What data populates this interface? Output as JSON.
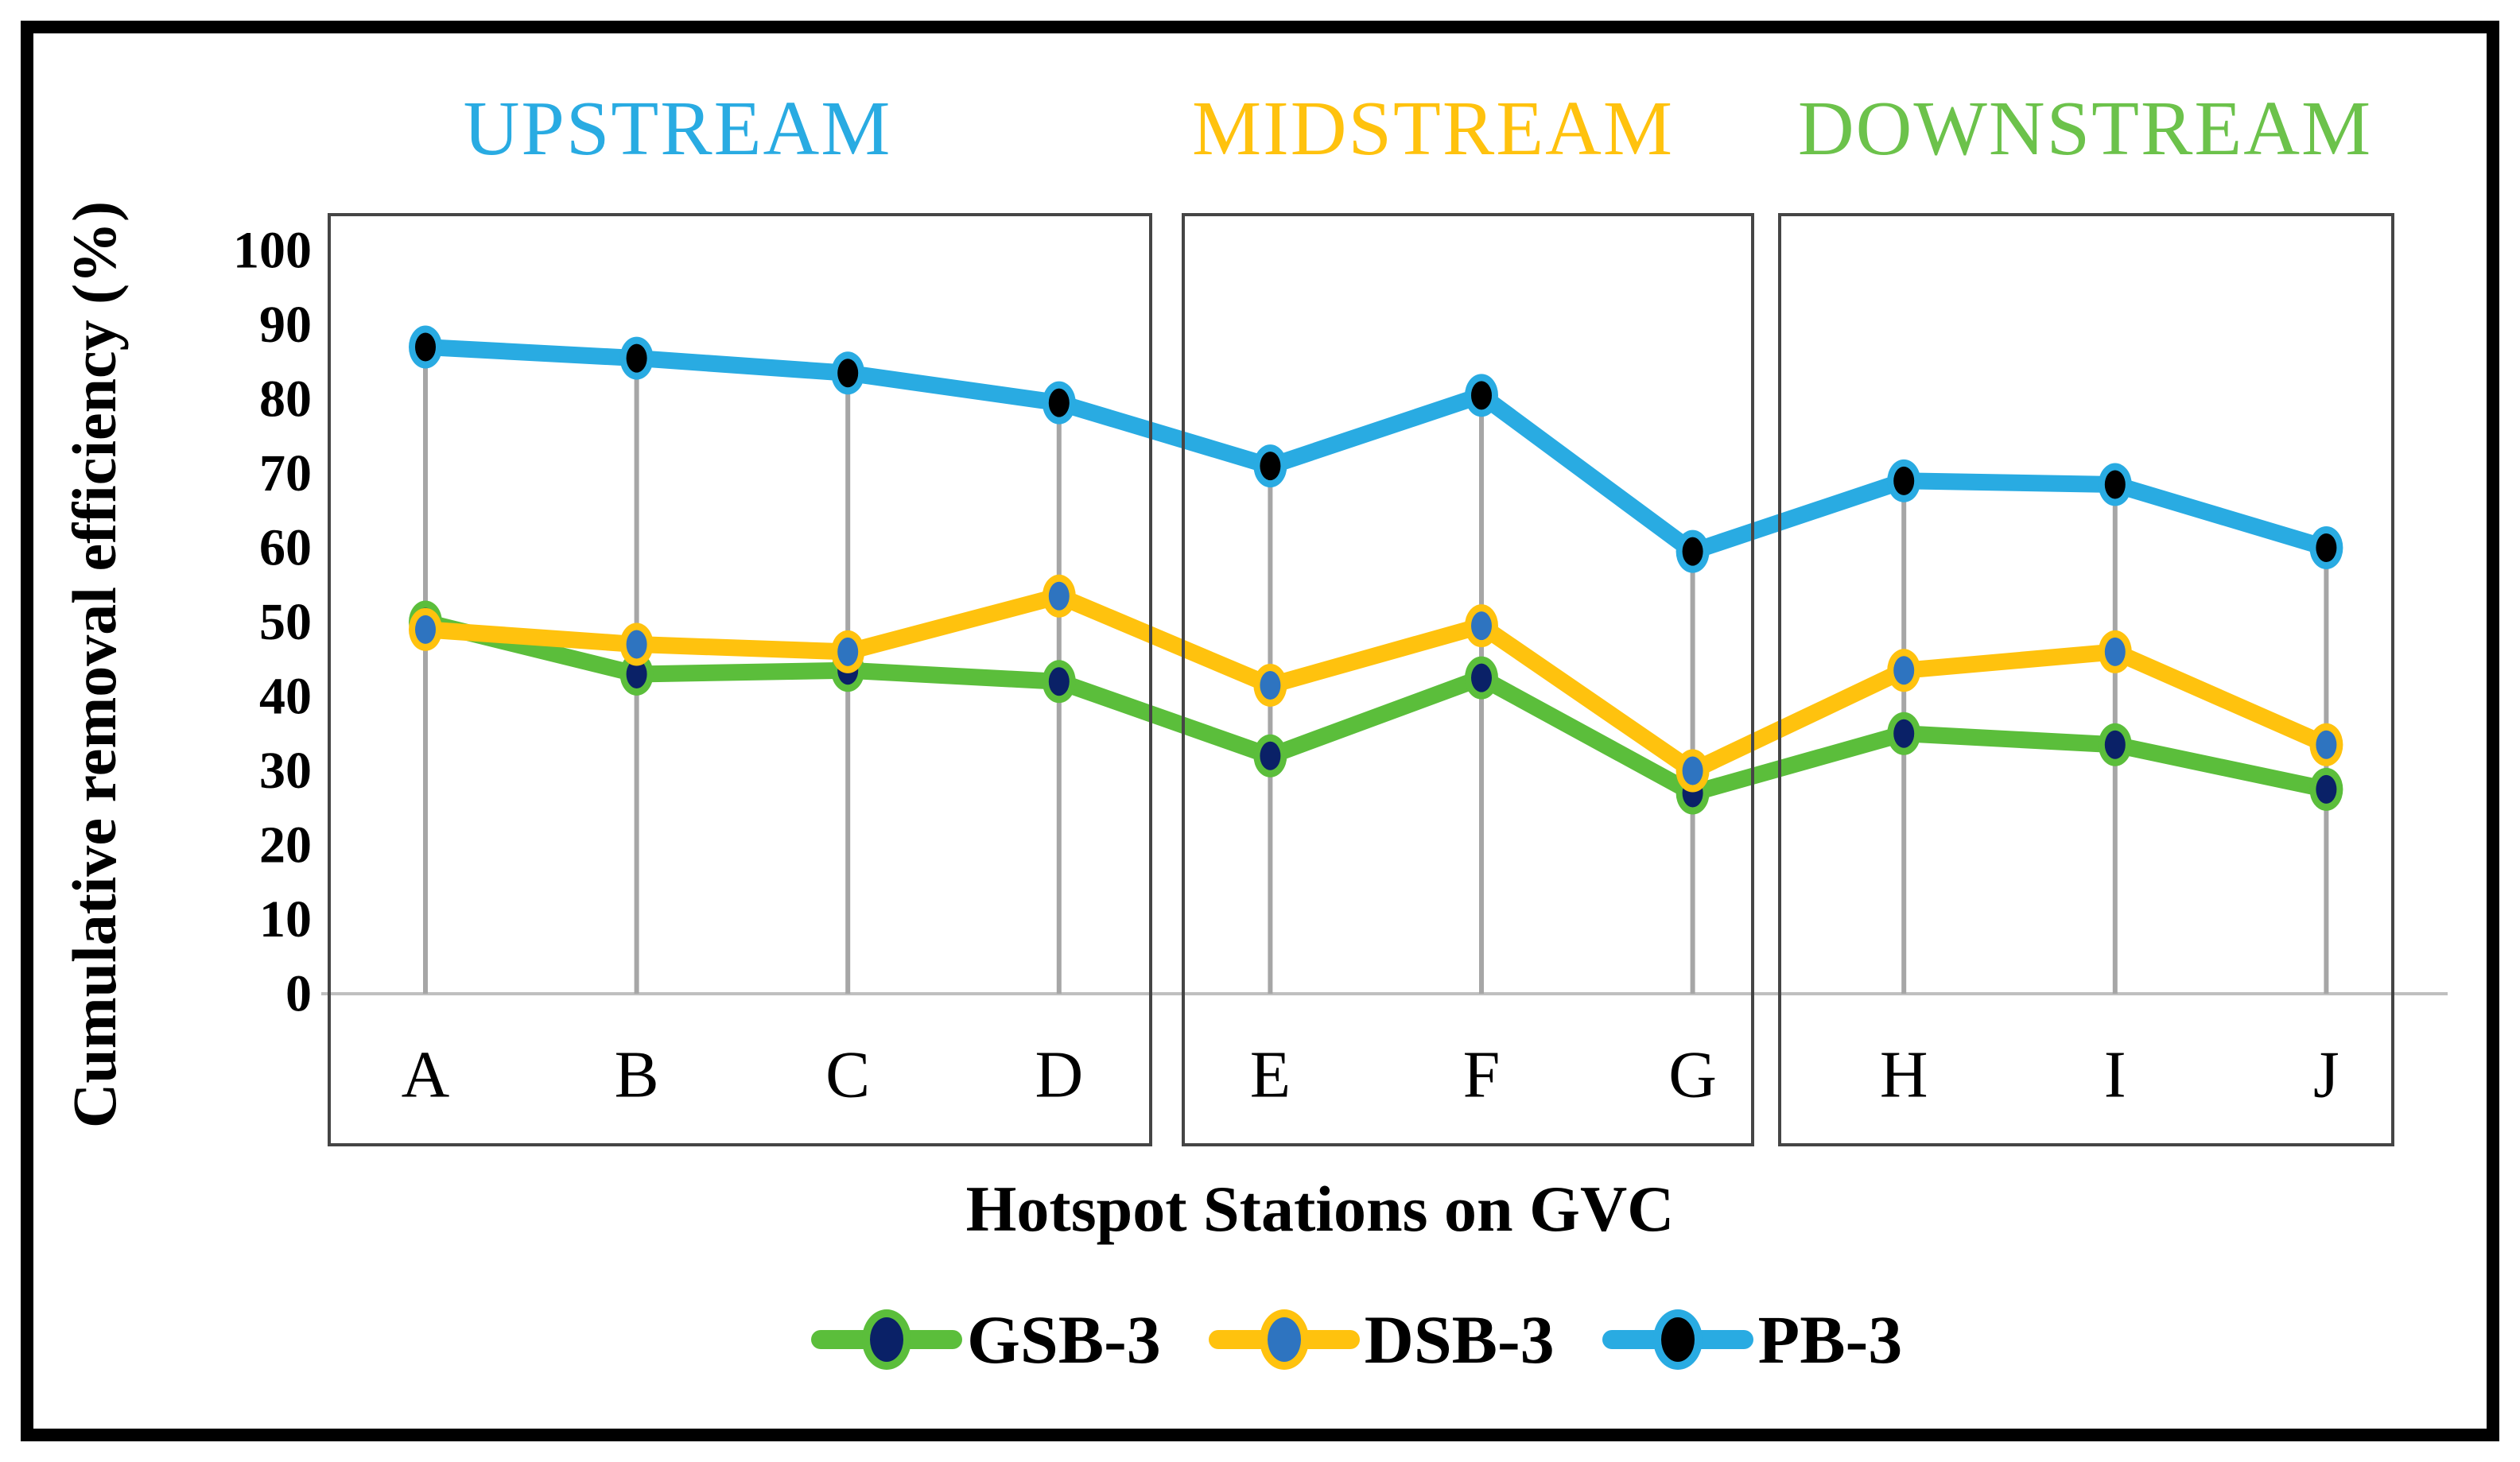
{
  "chart_data": {
    "type": "line",
    "categories": [
      "A",
      "B",
      "C",
      "D",
      "E",
      "F",
      "G",
      "H",
      "I",
      "J"
    ],
    "series": [
      {
        "name": "GSB-3",
        "line_color": "#5BBE3B",
        "marker_ring": "#5BBE3B",
        "marker_fill": "#0A2167",
        "values": [
          50,
          43,
          43.5,
          42,
          32,
          42.5,
          27,
          35,
          33.5,
          27.5
        ]
      },
      {
        "name": "DSB-3",
        "line_color": "#FFC20E",
        "marker_ring": "#FFC20E",
        "marker_fill": "#2E74C0",
        "values": [
          49,
          47,
          46,
          53.5,
          41.5,
          49.5,
          30,
          43.5,
          46,
          33.5
        ]
      },
      {
        "name": "PB-3",
        "line_color": "#29ABE2",
        "marker_ring": "#29ABE2",
        "marker_fill": "#000000",
        "values": [
          87,
          85.5,
          83.5,
          79.5,
          71,
          80.5,
          59.5,
          69,
          68.5,
          60
        ]
      }
    ],
    "xlabel": "Hotspot Stations on GVC",
    "ylabel": "Cumulative removal efficiency (%)",
    "ylim": [
      0,
      100
    ],
    "yticks": [
      0,
      10,
      20,
      30,
      40,
      50,
      60,
      70,
      80,
      90,
      100
    ],
    "grid": false,
    "drop_lines": true,
    "legend_position": "bottom",
    "regions": [
      {
        "label": "UPSTREAM",
        "color": "#29ABE2",
        "stations": [
          "A",
          "D"
        ]
      },
      {
        "label": "MIDSTREAM",
        "color": "#FFC20E",
        "stations": [
          "E",
          "G"
        ]
      },
      {
        "label": "DOWNSTREAM",
        "color": "#6CC24B",
        "stations": [
          "H",
          "J"
        ]
      }
    ],
    "colors": {
      "axis_line": "#BFBFBF",
      "drop_line": "#A6A6A6",
      "box_border": "#454545",
      "frame_border": "#000000",
      "tick_text": "#000000"
    }
  }
}
